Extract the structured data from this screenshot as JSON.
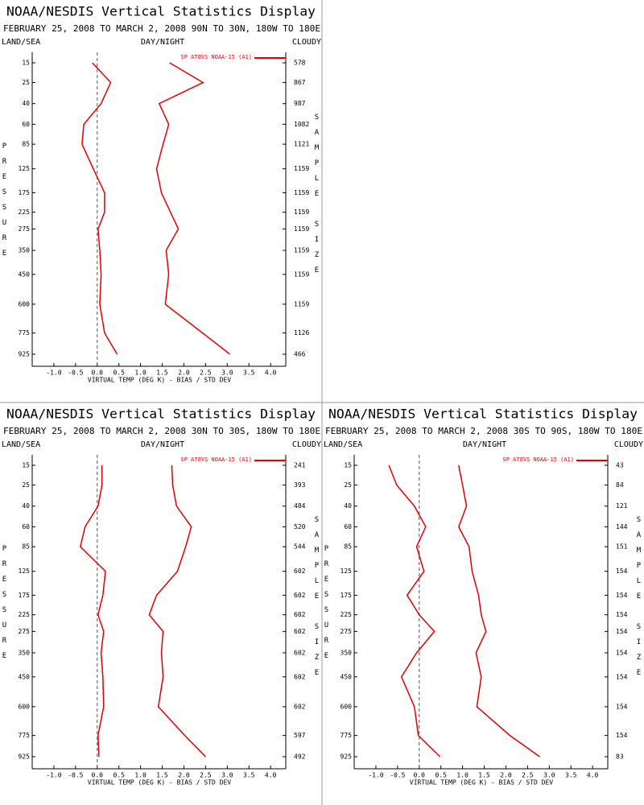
{
  "chart_data": [
    {
      "type": "line",
      "title": "NOAA/NESDIS Vertical Statistics Display",
      "subtitle": "FEBRUARY 25, 2008 TO MARCH 2, 2008 90N TO 30N, 180W TO 180E",
      "left_header": "LAND/SEA",
      "center_header": "DAY/NIGHT",
      "right_header": "CLOUDY",
      "ylabel": "PRESSURE",
      "y2label": "SAMPLE SIZE",
      "xlabel": "VIRTUAL TEMP (DEG K) - BIAS / STD DEV",
      "y": [
        15,
        25,
        40,
        60,
        85,
        125,
        175,
        225,
        275,
        350,
        450,
        600,
        775,
        925
      ],
      "yticks": [
        15,
        25,
        40,
        60,
        85,
        125,
        175,
        225,
        275,
        350,
        450,
        600,
        775,
        925
      ],
      "sample_size": [
        578,
        867,
        987,
        1082,
        1121,
        1159,
        1159,
        1159,
        1159,
        1159,
        1159,
        1159,
        1126,
        466
      ],
      "xlim": [
        -1.5,
        4.35
      ],
      "xticks": [
        {
          "value": -1,
          "label": "-1.0"
        },
        {
          "value": -0.5,
          "label": "-0.5"
        },
        {
          "value": 0,
          "label": "0.0"
        },
        0.5,
        {
          "value": 1,
          "label": "1.0"
        },
        1.5,
        {
          "value": 2,
          "label": "2.0"
        },
        2.5,
        {
          "value": 3,
          "label": "3.0"
        },
        3.5,
        {
          "value": 4,
          "label": "4.0"
        }
      ],
      "series": [
        {
          "name": "SP ATOVS NOAA-15 (A1)",
          "color": "#e00000",
          "bias": [
            -0.11,
            0.31,
            0.09,
            -0.31,
            -0.35,
            -0.09,
            0.17,
            0.17,
            0.02,
            0.06,
            0.09,
            0.06,
            0.17,
            0.46
          ],
          "std_dev": [
            1.67,
            2.44,
            1.43,
            1.65,
            1.52,
            1.37,
            1.48,
            1.69,
            1.87,
            1.59,
            1.65,
            1.57,
            2.43,
            3.06
          ]
        }
      ]
    },
    {
      "type": "line",
      "title": "NOAA/NESDIS Vertical Statistics Display",
      "subtitle": "FEBRUARY 25, 2008 TO MARCH 2, 2008 30N TO 30S, 180W TO 180E",
      "left_header": "LAND/SEA",
      "center_header": "DAY/NIGHT",
      "right_header": "CLOUDY",
      "ylabel": "PRESSURE",
      "y2label": "SAMPLE SIZE",
      "xlabel": "VIRTUAL TEMP (DEG K) - BIAS / STD DEV",
      "y": [
        15,
        25,
        40,
        60,
        85,
        125,
        175,
        225,
        275,
        350,
        450,
        600,
        775,
        925
      ],
      "yticks": [
        15,
        25,
        40,
        60,
        85,
        125,
        175,
        225,
        275,
        350,
        450,
        600,
        775,
        925
      ],
      "sample_size": [
        241,
        393,
        484,
        520,
        544,
        602,
        602,
        602,
        602,
        602,
        602,
        602,
        597,
        492
      ],
      "xlim": [
        -1.5,
        4.35
      ],
      "xticks": [
        {
          "value": -1,
          "label": "-1.0"
        },
        {
          "value": -0.5,
          "label": "-0.5"
        },
        {
          "value": 0,
          "label": "0.0"
        },
        0.5,
        {
          "value": 1,
          "label": "1.0"
        },
        1.5,
        {
          "value": 2,
          "label": "2.0"
        },
        2.5,
        {
          "value": 3,
          "label": "3.0"
        },
        3.5,
        {
          "value": 4,
          "label": "4.0"
        }
      ],
      "series": [
        {
          "name": "SP ATOVS NOAA-15 (A1)",
          "color": "#e00000",
          "bias": [
            0.11,
            0.11,
            0.02,
            -0.28,
            -0.39,
            0.19,
            0.13,
            0.02,
            0.15,
            0.09,
            0.13,
            0.15,
            0.02,
            0.04
          ],
          "std_dev": [
            1.72,
            1.74,
            1.83,
            2.17,
            2.04,
            1.85,
            1.37,
            1.2,
            1.52,
            1.48,
            1.52,
            1.41,
            2.02,
            2.5
          ]
        }
      ]
    },
    {
      "type": "line",
      "title": "NOAA/NESDIS Vertical Statistics Display",
      "subtitle": "FEBRUARY 25, 2008 TO MARCH 2, 2008 30S TO 90S, 180W TO 180E",
      "left_header": "LAND/SEA",
      "center_header": "DAY/NIGHT",
      "right_header": "CLOUDY",
      "ylabel": "PRESSURE",
      "y2label": "SAMPLE SIZE",
      "xlabel": "VIRTUAL TEMP (DEG K) - BIAS / STD DEV",
      "y": [
        15,
        25,
        40,
        60,
        85,
        125,
        175,
        225,
        275,
        350,
        450,
        600,
        775,
        925
      ],
      "yticks": [
        15,
        25,
        40,
        60,
        85,
        125,
        175,
        225,
        275,
        350,
        450,
        600,
        775,
        925
      ],
      "sample_size": [
        43,
        84,
        121,
        144,
        151,
        154,
        154,
        154,
        154,
        154,
        154,
        154,
        154,
        83
      ],
      "xlim": [
        -1.5,
        4.35
      ],
      "xticks": [
        {
          "value": -1,
          "label": "-1.0"
        },
        {
          "value": -0.5,
          "label": "-0.5"
        },
        {
          "value": 0,
          "label": "0.0"
        },
        0.5,
        {
          "value": 1,
          "label": "1.0"
        },
        1.5,
        {
          "value": 2,
          "label": "2.0"
        },
        2.5,
        {
          "value": 3,
          "label": "3.0"
        },
        3.5,
        {
          "value": 4,
          "label": "4.0"
        }
      ],
      "series": [
        {
          "name": "SP ATOVS NOAA-15 (A1)",
          "color": "#e00000",
          "bias": [
            -0.7,
            -0.52,
            -0.11,
            0.15,
            -0.06,
            0.11,
            -0.28,
            0,
            0.35,
            -0.06,
            -0.41,
            -0.11,
            -0.02,
            0.48
          ],
          "std_dev": [
            0.91,
            1.0,
            1.09,
            0.91,
            1.15,
            1.22,
            1.37,
            1.43,
            1.54,
            1.31,
            1.43,
            1.33,
            2.09,
            2.78
          ]
        }
      ]
    }
  ]
}
